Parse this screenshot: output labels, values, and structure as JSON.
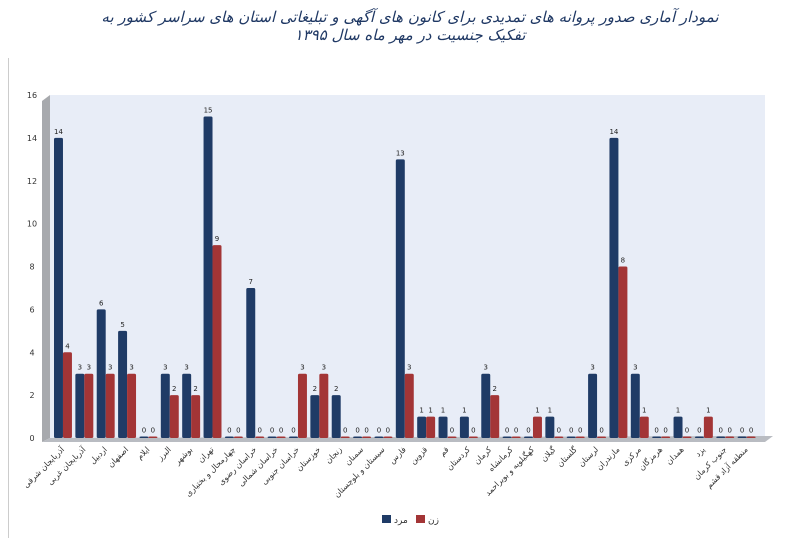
{
  "chart_data": {
    "type": "bar",
    "title": "نمودار آماری صدور پروانه های تمدیدی برای کانون های آگهی و تبلیغاتی استان های سراسر کشور به تفکیک جنسیت در مهر ماه سال ۱۳۹۵",
    "xlabel": "",
    "ylabel": "",
    "ylim": [
      0,
      16
    ],
    "yticks": [
      0,
      2,
      4,
      6,
      8,
      10,
      12,
      14,
      16
    ],
    "grid": false,
    "legend": "bottom",
    "categories": [
      "آذربایجان شرقی",
      "آذربایجان غربی",
      "اردبیل",
      "اصفهان",
      "ایلام",
      "البرز",
      "بوشهر",
      "تهران",
      "چهارمحال و بختیاری",
      "خراسان رضوی",
      "خراسان شمالی",
      "خراسان جنوبی",
      "خوزستان",
      "زنجان",
      "سمنان",
      "سیستان و بلوچستان",
      "فارس",
      "قزوین",
      "قم",
      "کردستان",
      "کرمان",
      "کرمانشاه",
      "کهگیلویه و بویراحمد",
      "گیلان",
      "گلستان",
      "لرستان",
      "مازندران",
      "مرکزی",
      "هرمزگان",
      "همدان",
      "یزد",
      "جنوب کرمان",
      "منطقه آزاد قشم"
    ],
    "series": [
      {
        "name": "مرد",
        "color": "#1f3b66",
        "values": [
          14,
          3,
          6,
          5,
          0,
          3,
          3,
          15,
          0,
          7,
          0,
          0,
          2,
          2,
          0,
          0,
          13,
          1,
          1,
          1,
          3,
          0,
          0,
          1,
          0,
          3,
          14,
          3,
          0,
          1,
          0,
          0,
          0
        ]
      },
      {
        "name": "زن",
        "color": "#a33536",
        "values": [
          4,
          3,
          3,
          3,
          0,
          2,
          2,
          9,
          0,
          0,
          0,
          3,
          3,
          0,
          0,
          0,
          3,
          1,
          0,
          0,
          2,
          0,
          1,
          0,
          0,
          0,
          8,
          1,
          0,
          0,
          1,
          0,
          0
        ]
      }
    ]
  }
}
